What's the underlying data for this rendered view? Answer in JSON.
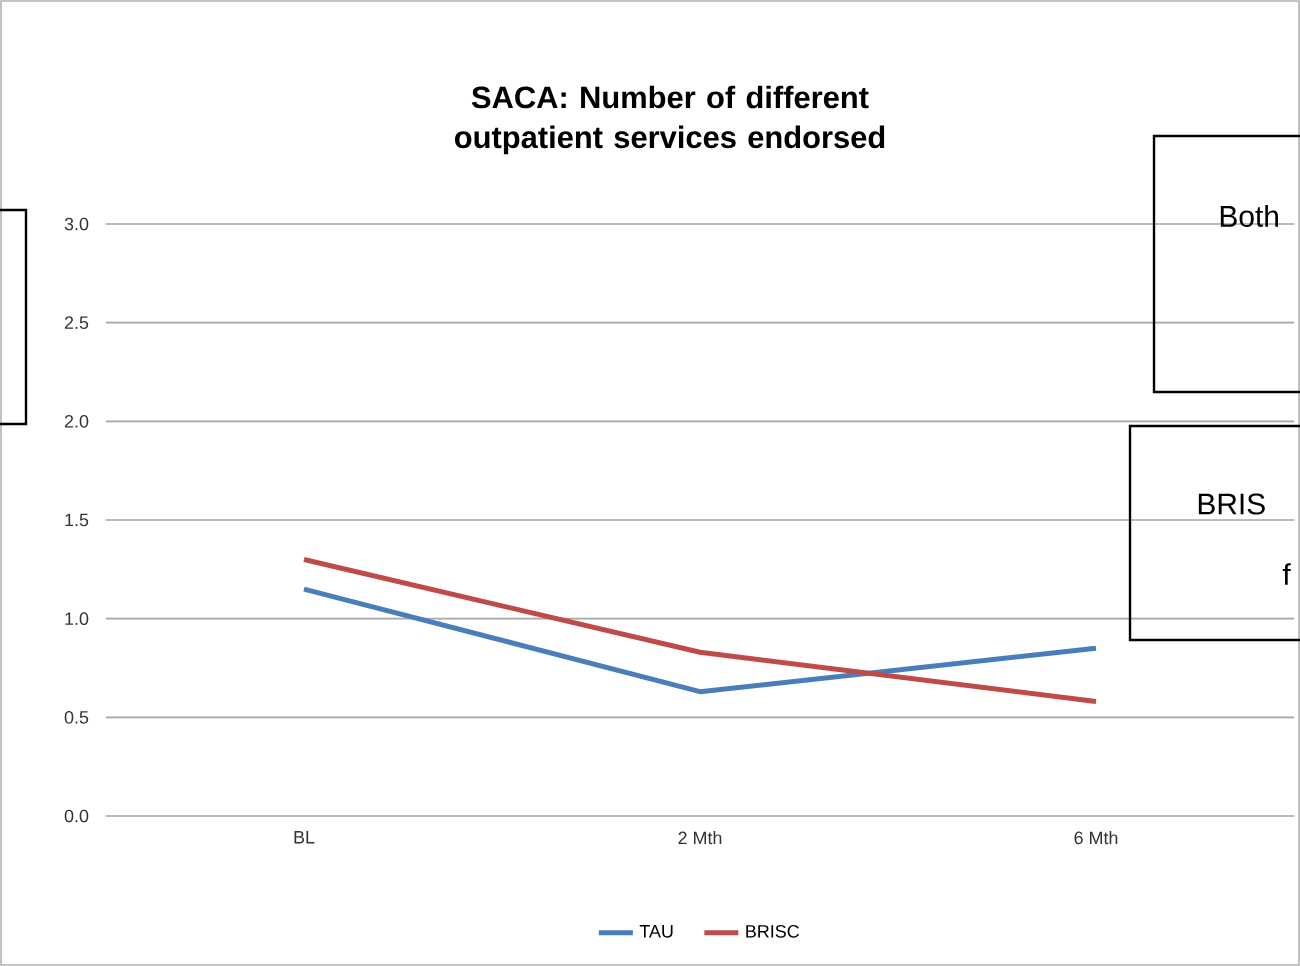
{
  "chart_data": {
    "type": "line",
    "title": "SACA: Number of different outpatient services endorsed",
    "categories": [
      "BL",
      "2 Mth",
      "6 Mth"
    ],
    "series": [
      {
        "name": "TAU",
        "color": "#4a7ebb",
        "values": [
          1.15,
          0.63,
          0.85
        ]
      },
      {
        "name": "BRISC",
        "color": "#be4b48",
        "values": [
          1.3,
          0.83,
          0.58
        ]
      }
    ],
    "ylim": [
      0,
      3
    ],
    "yticks": [
      {
        "value": 0,
        "label": "0.0"
      },
      {
        "value": 0.5,
        "label": "0.5"
      },
      {
        "value": 1,
        "label": "1.0"
      },
      {
        "value": 1.5,
        "label": "1.5"
      },
      {
        "value": 2,
        "label": "2.0"
      },
      {
        "value": 2.5,
        "label": "2.5"
      },
      {
        "value": 3,
        "label": "3.0"
      }
    ],
    "grid": "y",
    "legend": "bottom",
    "marker": "none",
    "line_style": "solid",
    "annotations": [
      "Both",
      "BRIS",
      "f"
    ]
  }
}
